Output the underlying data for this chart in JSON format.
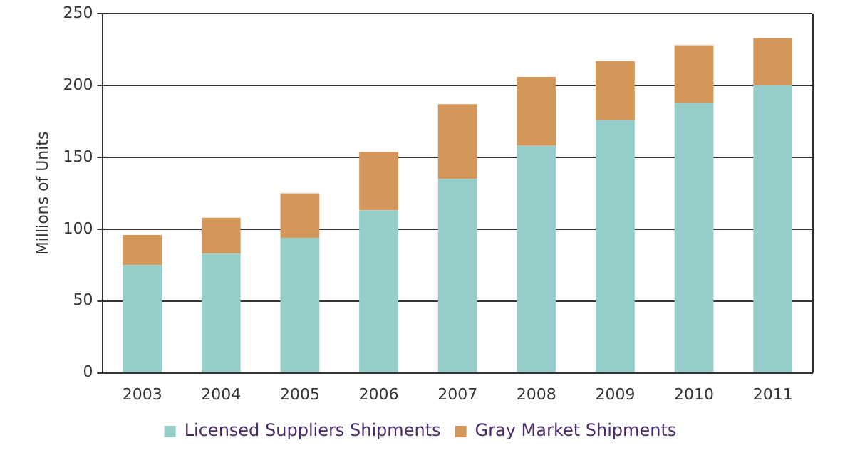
{
  "chart_data": {
    "type": "bar",
    "stacked": true,
    "ylabel": "Millions of Units",
    "categories": [
      "2003",
      "2004",
      "2005",
      "2006",
      "2007",
      "2008",
      "2009",
      "2010",
      "2011"
    ],
    "series": [
      {
        "name": "Licensed Suppliers Shipments",
        "color": "#94cdc9",
        "values": [
          75,
          83,
          94,
          113,
          135,
          158,
          176,
          188,
          200
        ]
      },
      {
        "name": "Gray Market Shipments",
        "color": "#d4975a",
        "values": [
          21,
          25,
          31,
          41,
          52,
          48,
          41,
          40,
          33
        ]
      }
    ],
    "ylim": [
      0,
      250
    ],
    "yticks": [
      0,
      50,
      100,
      150,
      200,
      250
    ],
    "grid": "y",
    "legend": "bottom"
  }
}
